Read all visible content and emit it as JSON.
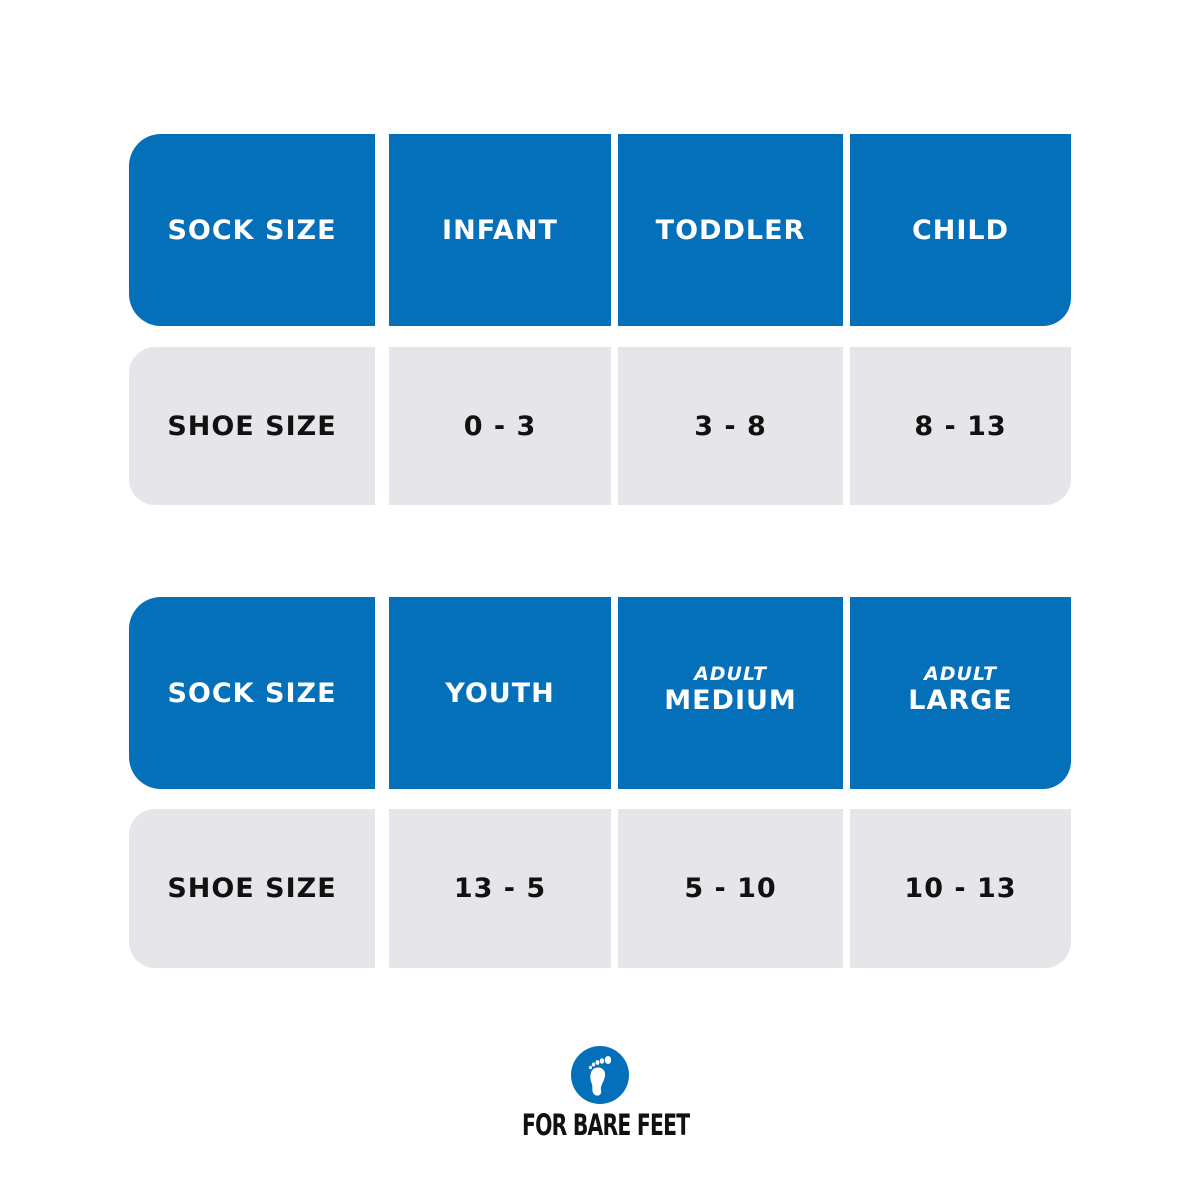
{
  "colors": {
    "header_bg": "#0470BA",
    "row_bg": "#E6E6EA",
    "header_text": "#FFFFFF",
    "row_text": "#111111"
  },
  "tables": [
    {
      "header": [
        {
          "label": "SOCK SIZE",
          "sub": ""
        },
        {
          "label": "INFANT",
          "sub": ""
        },
        {
          "label": "TODDLER",
          "sub": ""
        },
        {
          "label": "CHILD",
          "sub": ""
        }
      ],
      "row": [
        "SHOE SIZE",
        "0 - 3",
        "3 - 8",
        "8 - 13"
      ]
    },
    {
      "header": [
        {
          "label": "SOCK SIZE",
          "sub": ""
        },
        {
          "label": "YOUTH",
          "sub": ""
        },
        {
          "label": "MEDIUM",
          "sub": "ADULT"
        },
        {
          "label": "LARGE",
          "sub": "ADULT"
        }
      ],
      "row": [
        "SHOE SIZE",
        "13 - 5",
        "5 - 10",
        "10 - 13"
      ]
    }
  ],
  "logo": {
    "icon": "footprint-icon",
    "text": "FOR BARE FEET"
  }
}
